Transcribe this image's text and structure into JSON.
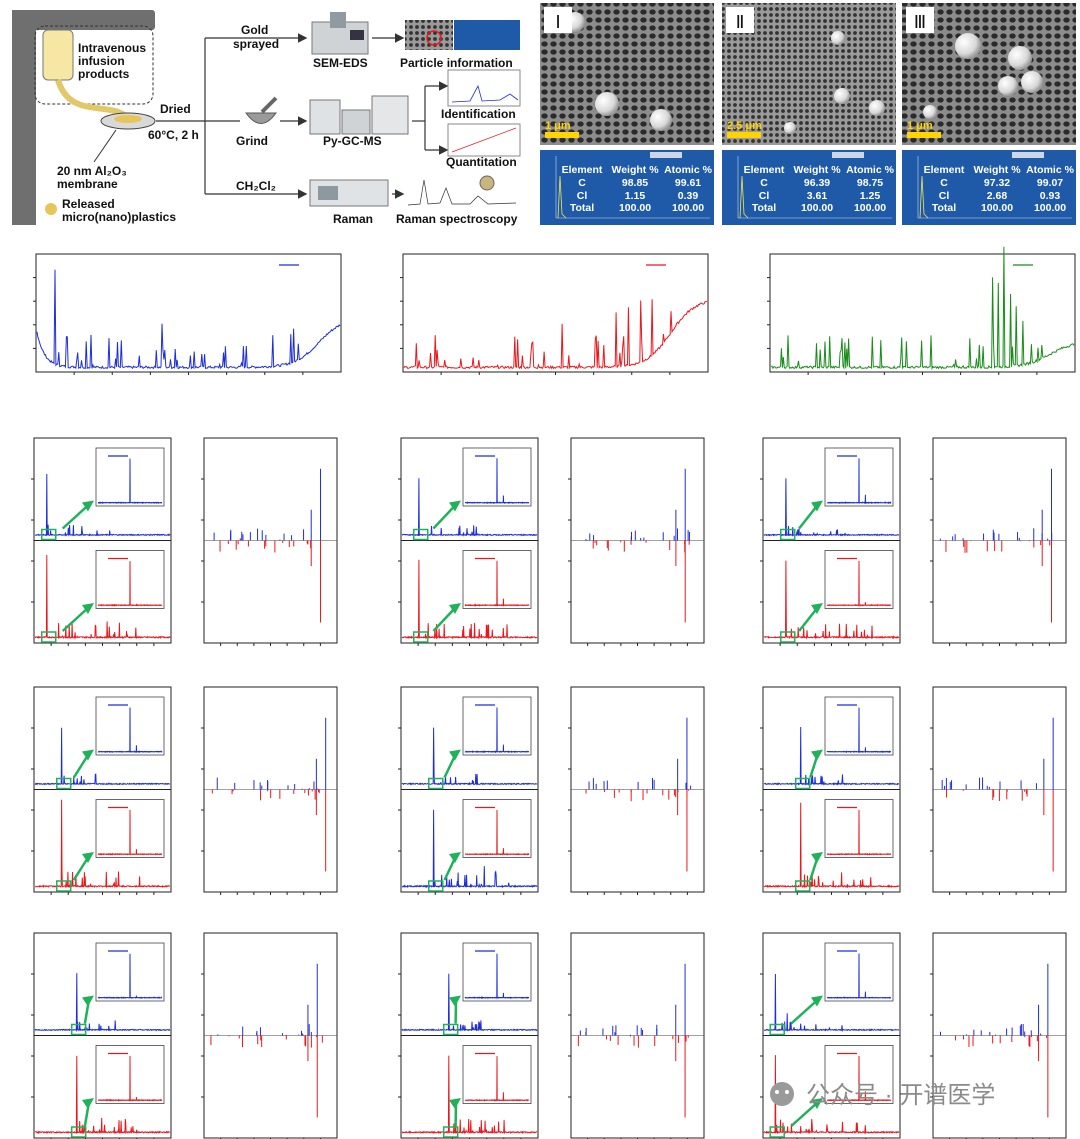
{
  "workflow": {
    "infusion_label": [
      "Intravenous",
      "infusion",
      "products"
    ],
    "membrane_label": [
      "20 nm Al₂O₃",
      "membrane"
    ],
    "released_label": [
      "Released",
      "micro(nano)plastics"
    ],
    "dried_label": "Dried",
    "dried_cond": "60°C, 2 h",
    "gold_label": [
      "Gold",
      "sprayed"
    ],
    "grind_label": "Grind",
    "solvent_label": "CH₂Cl₂",
    "sem_eds_label": "SEM-EDS",
    "pygcms_label": "Py-GC-MS",
    "raman_label": "Raman",
    "particle_info_label": "Particle information",
    "identification_label": "Identification",
    "quantitation_label": "Quantitation",
    "raman_spec_label": "Raman spectroscopy"
  },
  "sem_panels": [
    {
      "numeral": "Ⅰ",
      "scale": "1 μm",
      "eds": {
        "header": [
          "Element",
          "Weight %",
          "Atomic %"
        ],
        "rows": [
          [
            "C",
            "98.85",
            "99.61"
          ],
          [
            "Cl",
            "1.15",
            "0.39"
          ],
          [
            "Total",
            "100.00",
            "100.00"
          ]
        ]
      }
    },
    {
      "numeral": "Ⅱ",
      "scale": "2.5 μm",
      "eds": {
        "header": [
          "Element",
          "Weight %",
          "Atomic %"
        ],
        "rows": [
          [
            "C",
            "96.39",
            "98.75"
          ],
          [
            "Cl",
            "3.61",
            "1.25"
          ],
          [
            "Total",
            "100.00",
            "100.00"
          ]
        ]
      }
    },
    {
      "numeral": "Ⅲ",
      "scale": "1 μm",
      "eds": {
        "header": [
          "Element",
          "Weight %",
          "Atomic %"
        ],
        "rows": [
          [
            "C",
            "97.32",
            "99.07"
          ],
          [
            "Cl",
            "2.68",
            "0.93"
          ],
          [
            "Total",
            "100.00",
            "100.00"
          ]
        ]
      }
    }
  ],
  "colors": {
    "blue": "#1f2fd6",
    "red": "#e8191e",
    "green": "#1a8c1a",
    "arrow": "#1fb25a",
    "sem_table": "#1e5aa8"
  },
  "watermark": "公众号 · 开谱医学"
}
